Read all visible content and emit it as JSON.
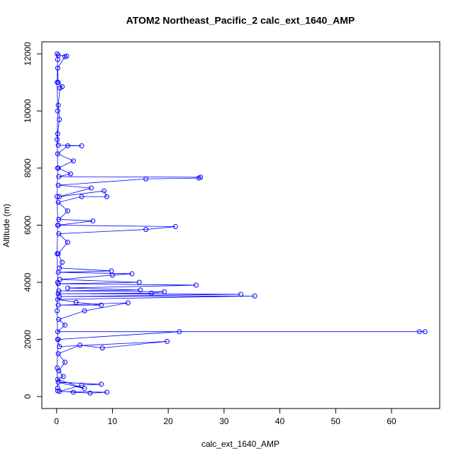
{
  "chart_data": {
    "type": "line",
    "title": "ATOM2 Northeast_Pacific_2 calc_ext_1640_AMP",
    "x_label": "calc_ext_1640_AMP",
    "y_label": "Altitude (m)",
    "color": "#0000ff",
    "x": [
      0.2,
      3,
      6,
      9,
      0.5,
      4.5,
      8,
      0.3,
      5,
      0.2,
      1.2,
      0.4,
      1.5,
      0.3,
      4.2,
      8.2,
      19.8,
      0.5,
      0.3,
      22,
      65,
      66,
      0.2,
      1.5,
      0.4,
      5,
      12.8,
      0.3,
      8,
      3.5,
      0.2,
      35.5,
      0.5,
      33,
      0.3,
      17,
      19.3,
      0.4,
      15,
      2,
      25,
      0.3,
      14.8,
      0.6,
      10,
      13.5,
      0.3,
      9.8,
      0.5,
      1,
      0.3,
      2,
      0.4,
      16,
      21.3,
      0.3,
      6.5,
      0.4,
      2,
      0.3,
      4.5,
      9,
      8.5,
      0.5,
      6.2,
      0.3,
      16,
      25.5,
      25.8,
      0.4,
      2.5,
      0.3,
      3,
      0.2,
      2,
      4.5,
      0.3,
      0.2,
      0.5,
      0.3,
      0.6,
      1,
      0.3,
      0.2,
      1.5,
      1.8,
      0.3,
      0.1,
      0.2,
      0.1,
      0.2,
      0.1,
      0.2,
      0.1,
      0.2,
      0.1,
      0.2,
      0.1,
      0.2,
      0.1,
      0.2
    ],
    "values": [
      200,
      150,
      120,
      150,
      180,
      400,
      430,
      500,
      280,
      600,
      700,
      900,
      1200,
      1500,
      1800,
      1700,
      1930,
      1750,
      2000,
      2270,
      2270,
      2270,
      2270,
      2500,
      2700,
      3000,
      3280,
      3200,
      3200,
      3300,
      3400,
      3520,
      3500,
      3580,
      3600,
      3620,
      3670,
      3700,
      3730,
      3800,
      3900,
      3950,
      4000,
      4100,
      4250,
      4300,
      4350,
      4400,
      4500,
      4700,
      5000,
      5400,
      5700,
      5850,
      5950,
      6000,
      6150,
      6200,
      6500,
      6800,
      7000,
      7000,
      7200,
      7000,
      7300,
      7400,
      7620,
      7650,
      7680,
      7700,
      7800,
      8000,
      8250,
      8500,
      8780,
      8780,
      8800,
      9200,
      9700,
      10200,
      10800,
      10850,
      11000,
      11500,
      11900,
      11920,
      11950,
      12000,
      11800,
      11000,
      10000,
      9000,
      8000,
      7000,
      6000,
      5000,
      4000,
      3000,
      2000,
      1000,
      300
    ],
    "xlim": [
      -2.64,
      68.64
    ],
    "ylim": [
      -420,
      12420
    ],
    "xticks": [
      0,
      10,
      20,
      30,
      40,
      50,
      60
    ],
    "yticks": [
      0,
      2000,
      4000,
      6000,
      8000,
      10000,
      12000
    ]
  }
}
